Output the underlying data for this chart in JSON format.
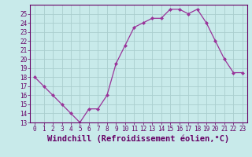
{
  "x": [
    0,
    1,
    2,
    3,
    4,
    5,
    6,
    7,
    8,
    9,
    10,
    11,
    12,
    13,
    14,
    15,
    16,
    17,
    18,
    19,
    20,
    21,
    22,
    23
  ],
  "y": [
    18,
    17,
    16,
    15,
    14,
    13,
    14.5,
    14.5,
    16,
    19.5,
    21.5,
    23.5,
    24,
    24.5,
    24.5,
    25.5,
    25.5,
    25,
    25.5,
    24,
    22,
    20,
    18.5,
    18.5
  ],
  "line_color": "#993399",
  "marker_color": "#993399",
  "bg_color": "#c8eaea",
  "grid_color": "#aacece",
  "xlabel": "Windchill (Refroidissement éolien,°C)",
  "ylim": [
    13,
    26
  ],
  "xlim": [
    -0.5,
    23.5
  ],
  "yticks": [
    13,
    14,
    15,
    16,
    17,
    18,
    19,
    20,
    21,
    22,
    23,
    24,
    25
  ],
  "xticks": [
    0,
    1,
    2,
    3,
    4,
    5,
    6,
    7,
    8,
    9,
    10,
    11,
    12,
    13,
    14,
    15,
    16,
    17,
    18,
    19,
    20,
    21,
    22,
    23
  ],
  "tick_fontsize": 5.5,
  "xlabel_fontsize": 7.5,
  "label_color": "#660066",
  "axis_color": "#660066",
  "title_color": "#660066"
}
